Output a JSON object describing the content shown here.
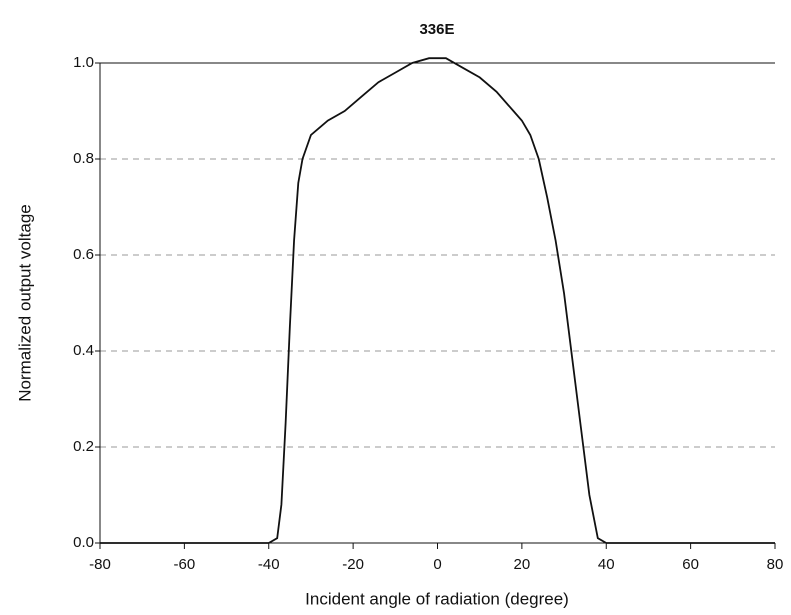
{
  "chart_data": {
    "type": "line",
    "title": "336E",
    "x_label": "Incident angle of radiation (degree)",
    "y_label": "Normalized output voltage",
    "x": [
      -80,
      -50,
      -40,
      -38,
      -37,
      -36,
      -35,
      -34,
      -33,
      -32,
      -30,
      -26,
      -22,
      -18,
      -14,
      -10,
      -6,
      -2,
      2,
      6,
      10,
      14,
      18,
      20,
      22,
      24,
      26,
      28,
      30,
      32,
      34,
      36,
      38,
      40,
      60,
      80
    ],
    "series": [
      {
        "name": "336E",
        "color": "#111111",
        "values": [
          0,
          0,
          0,
          0.01,
          0.08,
          0.25,
          0.45,
          0.63,
          0.75,
          0.8,
          0.85,
          0.88,
          0.9,
          0.93,
          0.96,
          0.98,
          1.0,
          1.01,
          1.01,
          0.99,
          0.97,
          0.94,
          0.9,
          0.88,
          0.85,
          0.8,
          0.72,
          0.63,
          0.52,
          0.38,
          0.24,
          0.1,
          0.01,
          0,
          0,
          0
        ]
      }
    ],
    "xlim": [
      -80,
      80
    ],
    "xticks": [
      -80,
      -60,
      -40,
      -20,
      0,
      20,
      40,
      60,
      80
    ],
    "ylim": [
      0,
      1
    ],
    "yticks": [
      {
        "value": 0,
        "label": "0.0"
      },
      0.2,
      0.4,
      0.6,
      0.8,
      {
        "value": 1,
        "label": "1.0"
      }
    ],
    "grid": true
  }
}
